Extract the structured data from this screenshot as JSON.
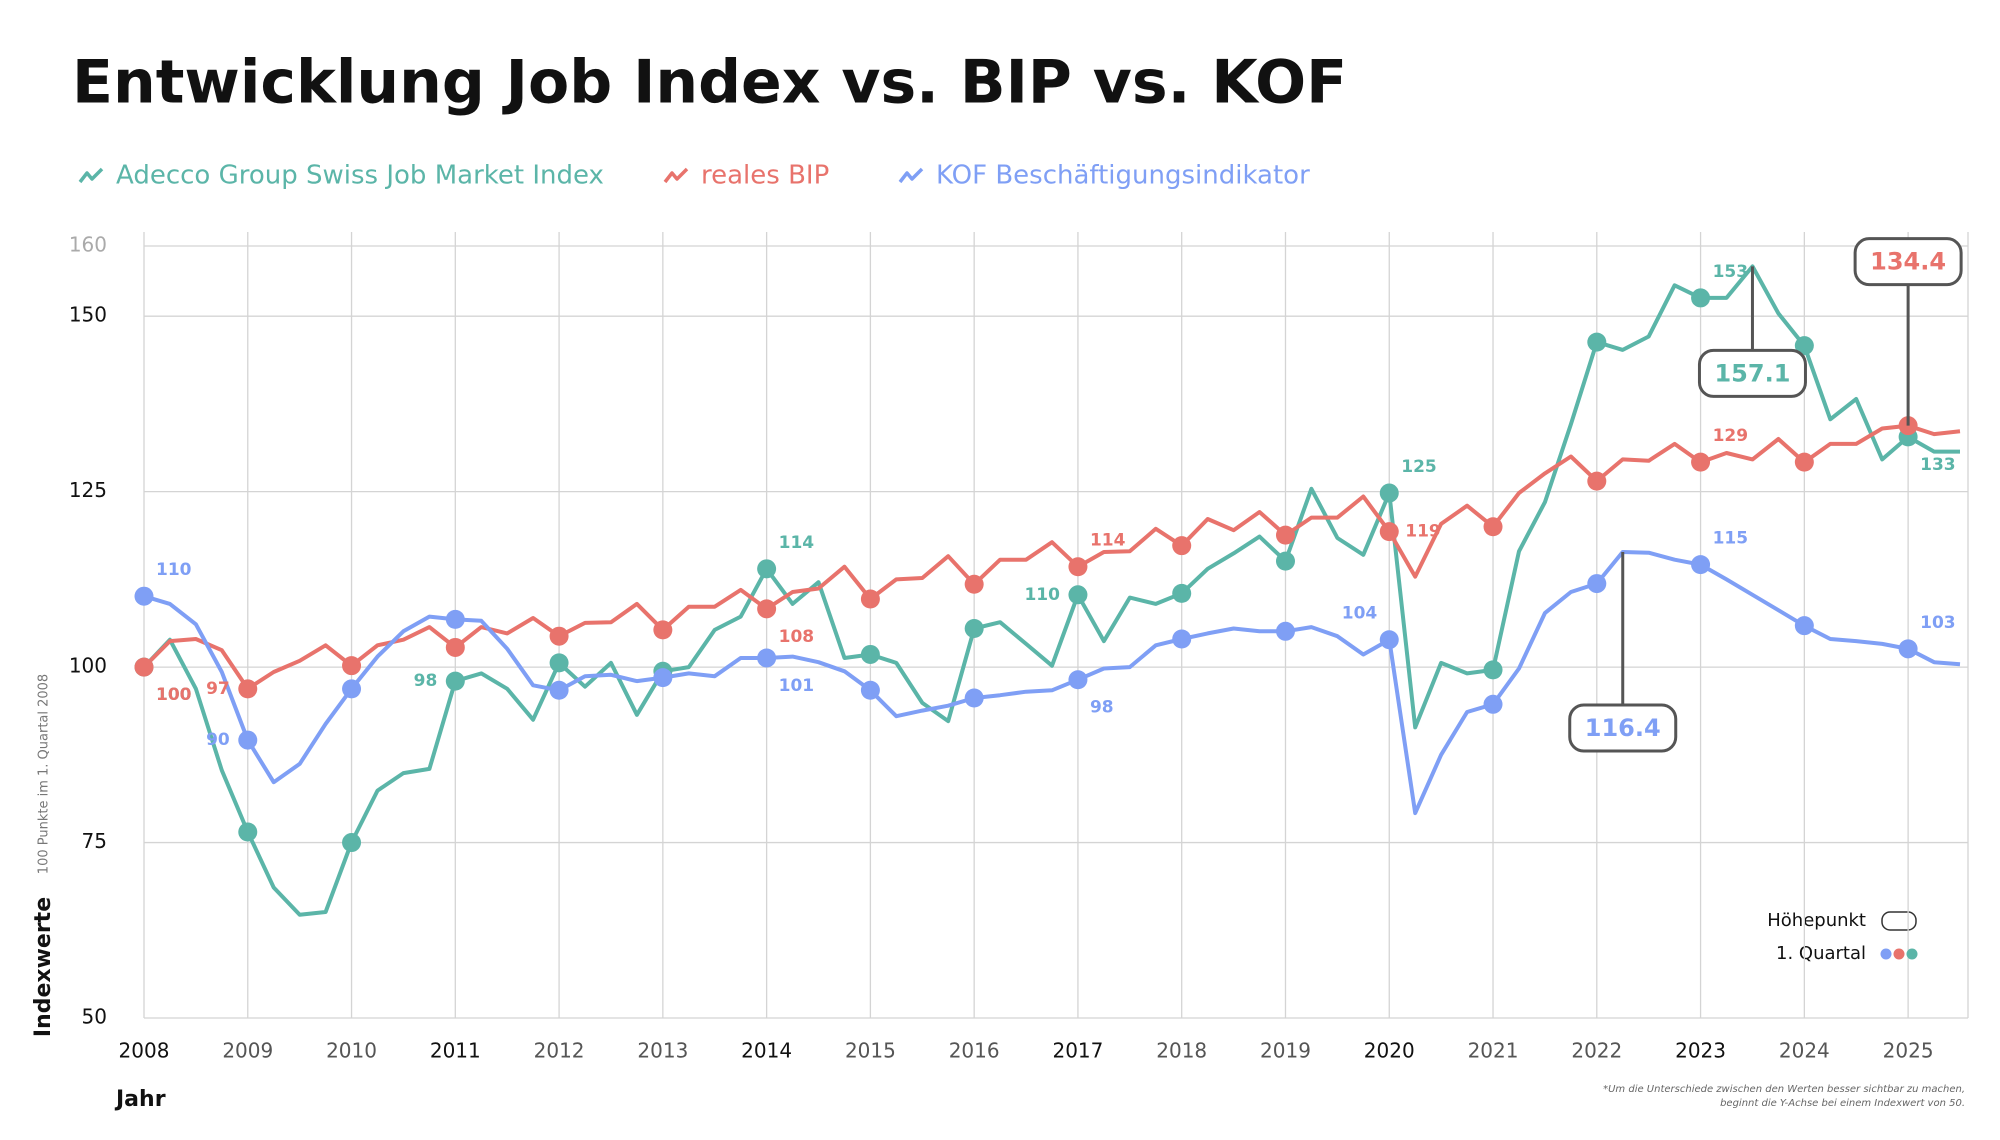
{
  "chart_data": {
    "type": "line",
    "title": "Entwicklung Job Index vs. BIP vs. KOF",
    "y_label": "Indexwerte",
    "y_sublabel": "100 Punkte im 1. Quartal 2008",
    "x_label": "Jahr",
    "footnote": [
      "*Um die Unterschiede zwischen den Werten besser sichtbar zu machen,",
      "beginnt die Y-Achse bei einem Indexwert von 50."
    ],
    "key": {
      "peak": "Höhepunkt",
      "quarter": "1. Quartal"
    },
    "x": [
      2008,
      2008.25,
      2008.5,
      2008.75,
      2009,
      2009.25,
      2009.5,
      2009.75,
      2010,
      2010.25,
      2010.5,
      2010.75,
      2011,
      2011.25,
      2011.5,
      2011.75,
      2012,
      2012.25,
      2012.5,
      2012.75,
      2013,
      2013.25,
      2013.5,
      2013.75,
      2014,
      2014.25,
      2014.5,
      2014.75,
      2015,
      2015.25,
      2015.5,
      2015.75,
      2016,
      2016.25,
      2016.5,
      2016.75,
      2017,
      2017.25,
      2017.5,
      2017.75,
      2018,
      2018.25,
      2018.5,
      2018.75,
      2019,
      2019.25,
      2019.5,
      2019.75,
      2020,
      2020.25,
      2020.5,
      2020.75,
      2021,
      2021.25,
      2021.5,
      2021.75,
      2022,
      2022.25,
      2022.5,
      2022.75,
      2023,
      2023.25,
      2023.5,
      2023.75,
      2024,
      2024.25,
      2024.5,
      2024.75,
      2025,
      2025.25,
      2025.5
    ],
    "xlim": [
      2008,
      2025.5
    ],
    "xticks": [
      2008,
      2009,
      2010,
      2011,
      2012,
      2013,
      2014,
      2015,
      2016,
      2017,
      2018,
      2019,
      2020,
      2021,
      2022,
      2023,
      2024,
      2025
    ],
    "ylim": [
      50,
      160
    ],
    "yticks": [
      50,
      75,
      100,
      125,
      150,
      160
    ],
    "grid": true,
    "series": [
      {
        "name": "Adecco Group Swiss Job Market Index",
        "color": "#5bb5a8",
        "values": [
          100,
          103.9,
          96.9,
          85.3,
          76.5,
          68.6,
          64.7,
          65.1,
          75,
          82.4,
          84.9,
          85.5,
          98,
          99.1,
          96.9,
          92.5,
          100.6,
          97.2,
          100.6,
          93.2,
          99.4,
          100,
          105.3,
          107.2,
          114,
          109,
          112.1,
          101.3,
          101.8,
          100.6,
          94.9,
          92.3,
          105.5,
          106.4,
          103.3,
          100.2,
          110.3,
          103.7,
          109.9,
          109,
          110.5,
          114,
          116.2,
          118.6,
          115.1,
          125.4,
          118.4,
          116,
          124.8,
          91.4,
          100.6,
          99.1,
          99.6,
          116.5,
          123.5,
          134.6,
          146.3,
          145.2,
          147.1,
          154.4,
          152.6,
          152.6,
          157.1,
          150.4,
          145.8,
          135.3,
          138.2,
          129.6,
          132.8,
          130.7,
          130.7
        ],
        "value_labels": [
          "100",
          null,
          null,
          null,
          null,
          null,
          null,
          null,
          null,
          null,
          null,
          null,
          "98",
          null,
          null,
          null,
          null,
          null,
          null,
          null,
          null,
          null,
          null,
          null,
          "114",
          null,
          null,
          null,
          null,
          null,
          null,
          null,
          null,
          null,
          null,
          null,
          "110",
          null,
          null,
          null,
          null,
          null,
          null,
          null,
          null,
          null,
          null,
          null,
          "125",
          null,
          null,
          null,
          null,
          null,
          null,
          null,
          null,
          null,
          null,
          null,
          "153",
          null,
          null,
          null,
          null,
          null,
          null,
          null,
          "133",
          null,
          null
        ]
      },
      {
        "name": "reales BIP",
        "color": "#e8736c",
        "values": [
          100,
          103.7,
          104,
          102.4,
          96.9,
          99.3,
          100.9,
          103.1,
          100.2,
          103.1,
          103.9,
          105.7,
          102.8,
          105.7,
          104.8,
          107,
          104.4,
          106.3,
          106.4,
          109,
          105.3,
          108.6,
          108.6,
          111,
          108.3,
          110.7,
          111.2,
          114.3,
          109.7,
          112.5,
          112.7,
          115.8,
          111.8,
          115.3,
          115.3,
          117.8,
          114.3,
          116.4,
          116.5,
          119.7,
          117.3,
          121.1,
          119.5,
          122.1,
          118.8,
          121.3,
          121.3,
          124.3,
          119.3,
          112.9,
          120.4,
          123,
          120,
          124.8,
          127.6,
          130,
          126.5,
          129.6,
          129.4,
          131.8,
          129.2,
          130.5,
          129.6,
          132.5,
          129.2,
          131.8,
          131.8,
          134,
          134.4,
          133.2,
          133.6
        ],
        "value_labels": [
          "100",
          null,
          null,
          null,
          "97",
          null,
          null,
          null,
          null,
          null,
          null,
          null,
          null,
          null,
          null,
          null,
          null,
          null,
          null,
          null,
          null,
          null,
          null,
          null,
          "108",
          null,
          null,
          null,
          null,
          null,
          null,
          null,
          null,
          null,
          null,
          null,
          "114",
          null,
          null,
          null,
          null,
          null,
          null,
          null,
          null,
          null,
          null,
          null,
          "119",
          null,
          null,
          null,
          null,
          null,
          null,
          null,
          null,
          null,
          null,
          null,
          "129",
          null,
          null,
          null,
          null,
          null,
          null,
          null,
          null,
          null,
          null
        ]
      },
      {
        "name": "KOF Beschäftigungsindikator",
        "color": "#7f9ff5",
        "values": [
          110.1,
          109,
          106.1,
          99.3,
          89.6,
          83.6,
          86.2,
          91.9,
          96.9,
          101.5,
          105.1,
          107.2,
          106.8,
          106.6,
          102.6,
          97.4,
          96.7,
          98.7,
          98.9,
          98,
          98.5,
          99.1,
          98.7,
          101.3,
          101.3,
          101.5,
          100.7,
          99.4,
          96.7,
          93,
          93.8,
          94.5,
          95.6,
          96,
          96.5,
          96.7,
          98.2,
          99.8,
          100,
          103.1,
          104,
          104.8,
          105.5,
          105.1,
          105.1,
          105.7,
          104.4,
          101.8,
          103.9,
          79.2,
          87.5,
          93.6,
          94.7,
          99.8,
          107.7,
          110.7,
          111.9,
          116.4,
          116.3,
          115.3,
          114.6,
          112.5,
          110.3,
          108.1,
          105.9,
          104,
          103.7,
          103.3,
          102.6,
          100.7,
          100.4
        ],
        "value_labels": [
          "110",
          null,
          null,
          null,
          "90",
          null,
          null,
          null,
          null,
          null,
          null,
          null,
          null,
          null,
          null,
          null,
          null,
          null,
          null,
          null,
          null,
          null,
          null,
          null,
          "101",
          null,
          null,
          null,
          null,
          null,
          null,
          null,
          null,
          null,
          null,
          null,
          "98",
          null,
          null,
          null,
          null,
          null,
          null,
          null,
          null,
          null,
          null,
          null,
          "104",
          null,
          null,
          null,
          null,
          null,
          null,
          null,
          null,
          null,
          null,
          null,
          "115",
          null,
          null,
          null,
          null,
          null,
          null,
          null,
          "103",
          null,
          null
        ]
      }
    ]
  }
}
